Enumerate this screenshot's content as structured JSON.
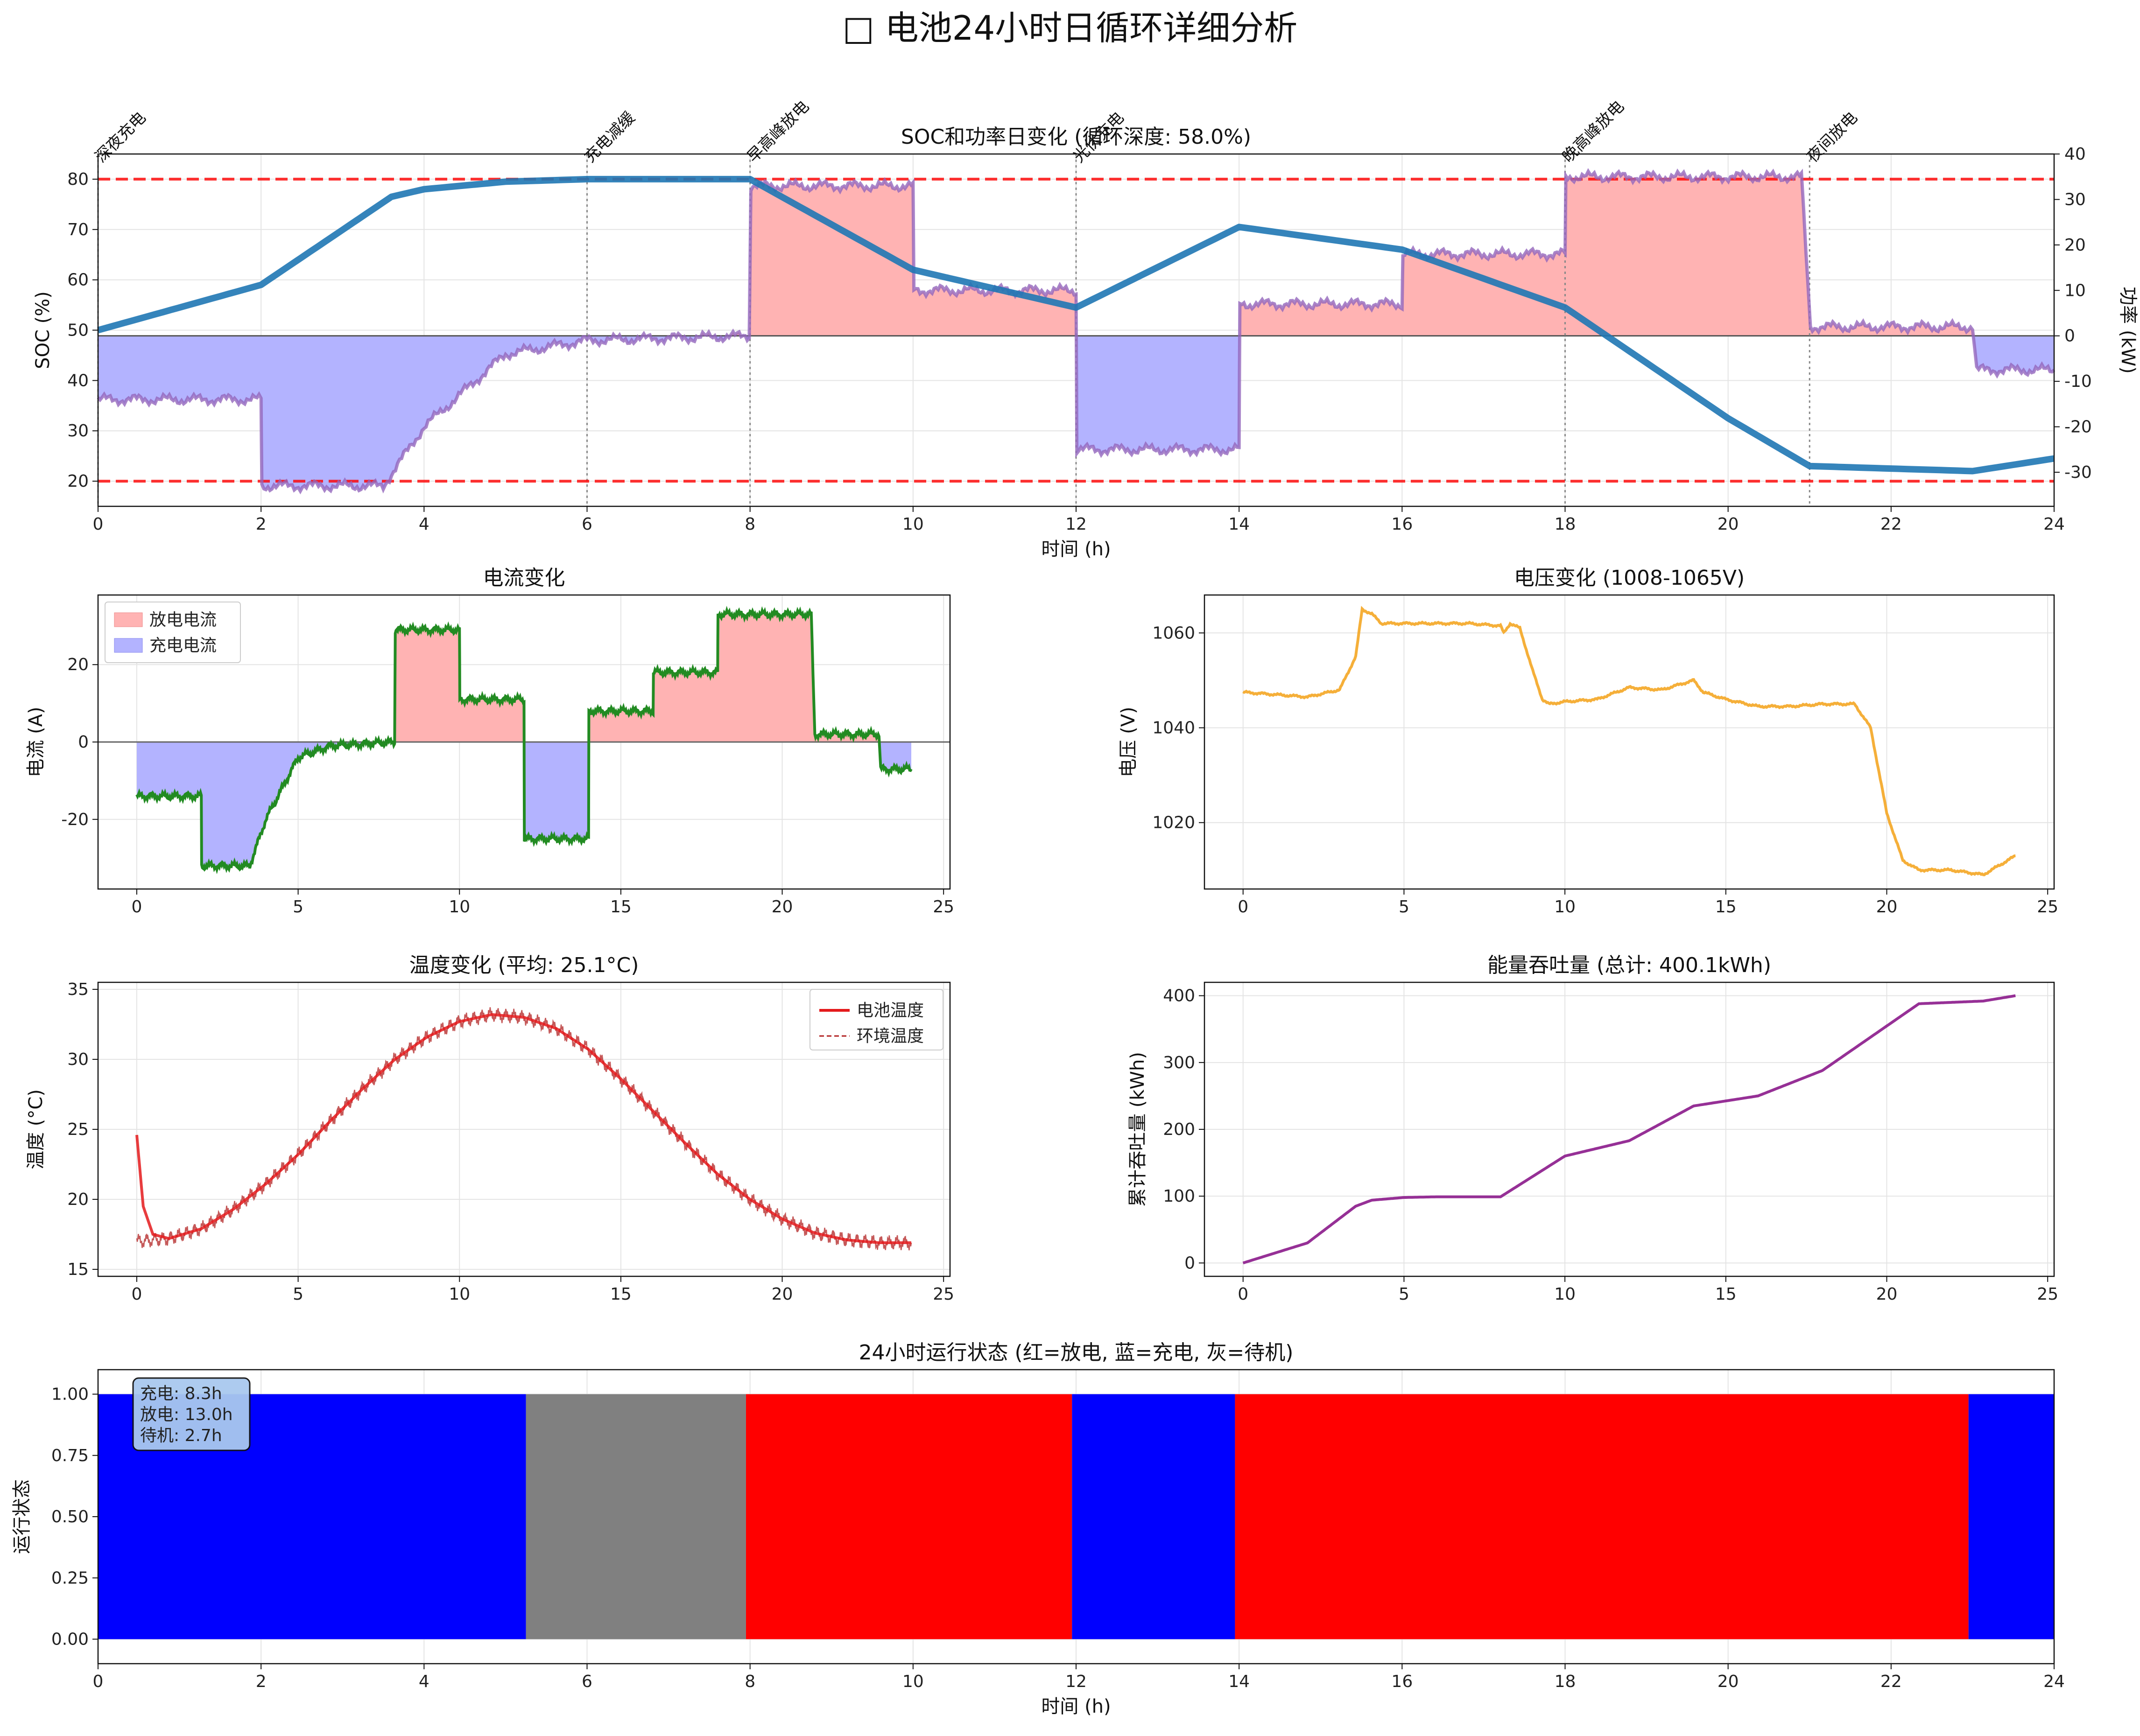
{
  "figure_title": "□ 电池24小时日循环详细分析",
  "chart_data": [
    {
      "id": "soc_power",
      "type": "line",
      "title": "SOC和功率日变化 (循环深度: 58.0%)",
      "xlabel": "时间 (h)",
      "ylabel": "SOC (%)",
      "y2label": "功率 (kW)",
      "xlim": [
        0,
        24
      ],
      "ylim": [
        15,
        85
      ],
      "y2lim": [
        -37.5,
        40
      ],
      "xticks": [
        0,
        2,
        4,
        6,
        8,
        10,
        12,
        14,
        16,
        18,
        20,
        22,
        24
      ],
      "yticks": [
        20,
        30,
        40,
        50,
        60,
        70,
        80
      ],
      "y2ticks": [
        -30,
        -20,
        -10,
        0,
        10,
        20,
        30,
        40
      ],
      "soc_limits": [
        20,
        80
      ],
      "soc": {
        "x": [
          0,
          2,
          3.6,
          4,
          5,
          6,
          8,
          10,
          12,
          14,
          16,
          18,
          20,
          21,
          23,
          24
        ],
        "y": [
          50,
          59,
          76.5,
          78,
          79.5,
          80,
          80,
          62,
          54.5,
          70.5,
          66,
          54.5,
          32.5,
          23,
          22,
          24.5
        ]
      },
      "power": {
        "x": [
          0,
          2,
          2.01,
          3.5,
          4,
          5,
          6,
          7.99,
          8.01,
          10,
          10.01,
          12,
          12.01,
          14,
          14.01,
          16,
          16.01,
          18,
          18.01,
          20.9,
          21.01,
          23,
          23.05,
          24
        ],
        "y": [
          -14,
          -14,
          -33,
          -33,
          -20,
          -4,
          -1,
          0,
          33,
          33,
          10,
          10,
          -25,
          -25,
          7,
          7,
          18,
          18,
          35,
          35,
          2,
          2,
          -7.5,
          -7.5
        ]
      },
      "phase_markers": [
        {
          "x": 0,
          "label": "深夜充电"
        },
        {
          "x": 6,
          "label": "充电减缓"
        },
        {
          "x": 8,
          "label": "早高峰放电"
        },
        {
          "x": 12,
          "label": "光伏充电"
        },
        {
          "x": 18,
          "label": "晚高峰放电"
        },
        {
          "x": 21,
          "label": "夜间放电"
        }
      ],
      "colors": {
        "soc": "#1f77b4",
        "power": "#9467bd",
        "limit": "#ff0000",
        "discharge_fill": "#ffb3b3",
        "charge_fill": "#b3b3ff"
      }
    },
    {
      "id": "current",
      "type": "line",
      "title": "电流变化",
      "ylabel": "电流 (A)",
      "xlim": [
        -1.2,
        25.2
      ],
      "ylim": [
        -38,
        38
      ],
      "xticks": [
        0,
        5,
        10,
        15,
        20,
        25
      ],
      "yticks": [
        -20,
        0,
        20
      ],
      "x": [
        0,
        2,
        2.01,
        3.5,
        4,
        5,
        6,
        7.99,
        8.01,
        10,
        10.01,
        12,
        12.01,
        14,
        14.01,
        16,
        16.01,
        18,
        18.01,
        20.9,
        21.01,
        23,
        23.05,
        24
      ],
      "y": [
        -14,
        -14,
        -32,
        -32,
        -20,
        -4,
        -1,
        0,
        29,
        29,
        11,
        11,
        -25,
        -25,
        8,
        8,
        18,
        18,
        33,
        33,
        2,
        2,
        -7,
        -7
      ],
      "legend": [
        "放电电流",
        "充电电流"
      ],
      "legend_position": "upper-left",
      "colors": {
        "line": "#228b22",
        "discharge_fill": "#ffb3b3",
        "charge_fill": "#b3b3ff"
      }
    },
    {
      "id": "voltage",
      "type": "line",
      "title": "电压变化 (1008-1065V)",
      "ylabel": "电压 (V)",
      "xlim": [
        -1.2,
        25.2
      ],
      "ylim": [
        1006,
        1068
      ],
      "xticks": [
        0,
        5,
        10,
        15,
        20,
        25
      ],
      "yticks": [
        1020,
        1040,
        1060
      ],
      "x": [
        0,
        1,
        2,
        3,
        3.5,
        3.7,
        4,
        4.3,
        5,
        6,
        7,
        8,
        8.1,
        8.3,
        8.6,
        9,
        9.3,
        9.5,
        10,
        11,
        12,
        13,
        14,
        14.3,
        15,
        16,
        17,
        18,
        19,
        19.5,
        20,
        20.5,
        21,
        22,
        23,
        24
      ],
      "y": [
        1047.5,
        1047,
        1046.5,
        1048,
        1055,
        1065,
        1064,
        1062,
        1062,
        1062,
        1062,
        1061.5,
        1060,
        1062,
        1061,
        1052,
        1046,
        1045,
        1045.5,
        1046,
        1048.5,
        1048,
        1050,
        1047.5,
        1046,
        1044.5,
        1044.5,
        1045,
        1045,
        1040,
        1022,
        1012,
        1010,
        1010,
        1009,
        1013
      ],
      "colors": {
        "line": "#f4a623"
      }
    },
    {
      "id": "temperature",
      "type": "line",
      "title": "温度变化 (平均: 25.1°C)",
      "ylabel": "温度 (°C)",
      "xlim": [
        -1.2,
        25.2
      ],
      "ylim": [
        14.5,
        35.5
      ],
      "xticks": [
        0,
        5,
        10,
        15,
        20,
        25
      ],
      "yticks": [
        15,
        20,
        25,
        30,
        35
      ],
      "series": [
        {
          "name": "电池温度",
          "x": [
            0,
            0.2,
            0.5,
            1,
            2,
            3,
            4,
            5,
            6,
            7,
            8,
            9,
            10,
            11,
            12,
            13,
            14,
            15,
            16,
            17,
            18,
            19,
            20,
            21,
            22,
            23,
            24
          ],
          "y": [
            24.6,
            19.5,
            17.5,
            17.2,
            17.9,
            19.3,
            21.1,
            23.2,
            25.6,
            27.9,
            30.0,
            31.6,
            32.7,
            33.2,
            33.0,
            32.2,
            30.7,
            28.6,
            26.3,
            24.0,
            21.8,
            20.0,
            18.6,
            17.6,
            17.1,
            16.9,
            16.9
          ]
        },
        {
          "name": "环境温度",
          "x": [
            0,
            1,
            2,
            3,
            4,
            5,
            6,
            7,
            8,
            9,
            10,
            11,
            12,
            13,
            14,
            15,
            16,
            17,
            18,
            19,
            20,
            21,
            22,
            23,
            24
          ],
          "y": [
            17.0,
            17.2,
            17.9,
            19.3,
            21.1,
            23.2,
            25.6,
            27.9,
            30.0,
            31.6,
            32.7,
            33.2,
            33.0,
            32.2,
            30.7,
            28.6,
            26.3,
            24.0,
            21.8,
            20.0,
            18.6,
            17.6,
            17.1,
            16.9,
            16.9
          ]
        }
      ],
      "legend_position": "upper-right",
      "colors": {
        "battery": "#e41a1c",
        "ambient": "#b22222"
      }
    },
    {
      "id": "throughput",
      "type": "line",
      "title": "能量吞吐量 (总计: 400.1kWh)",
      "ylabel": "累计吞吐量 (kWh)",
      "xlim": [
        -1.2,
        25.2
      ],
      "ylim": [
        -20,
        420
      ],
      "xticks": [
        0,
        5,
        10,
        15,
        20,
        25
      ],
      "yticks": [
        0,
        100,
        200,
        300,
        400
      ],
      "x": [
        0,
        2,
        3.5,
        4,
        5,
        6,
        8,
        10,
        12,
        14,
        16,
        18,
        21,
        23,
        24
      ],
      "y": [
        0,
        30,
        85,
        94,
        98,
        99,
        99,
        160,
        183,
        235,
        250,
        288,
        388,
        392,
        400
      ],
      "colors": {
        "line": "#8b1a8b"
      }
    },
    {
      "id": "state",
      "type": "bar",
      "title": "24小时运行状态 (红=放电, 蓝=充电, 灰=待机)",
      "xlabel": "时间 (h)",
      "ylabel": "运行状态",
      "xlim": [
        0,
        24
      ],
      "ylim": [
        -0.1,
        1.1
      ],
      "xticks": [
        0,
        2,
        4,
        6,
        8,
        10,
        12,
        14,
        16,
        18,
        20,
        22,
        24
      ],
      "yticks": [
        0.0,
        0.25,
        0.5,
        0.75,
        1.0
      ],
      "ytick_labels": [
        "0.00",
        "0.25",
        "0.50",
        "0.75",
        "1.00"
      ],
      "segments": [
        {
          "start": 0,
          "end": 5.25,
          "state": "charge"
        },
        {
          "start": 5.25,
          "end": 7.95,
          "state": "idle"
        },
        {
          "start": 7.95,
          "end": 11.95,
          "state": "discharge"
        },
        {
          "start": 11.95,
          "end": 13.95,
          "state": "charge"
        },
        {
          "start": 13.95,
          "end": 22.95,
          "state": "discharge"
        },
        {
          "start": 22.95,
          "end": 24,
          "state": "charge"
        }
      ],
      "summary": [
        "充电: 8.3h",
        "放电: 13.0h",
        "待机: 2.7h"
      ],
      "colors": {
        "discharge": "#ff0000",
        "charge": "#0000ff",
        "idle": "#808080"
      }
    }
  ]
}
